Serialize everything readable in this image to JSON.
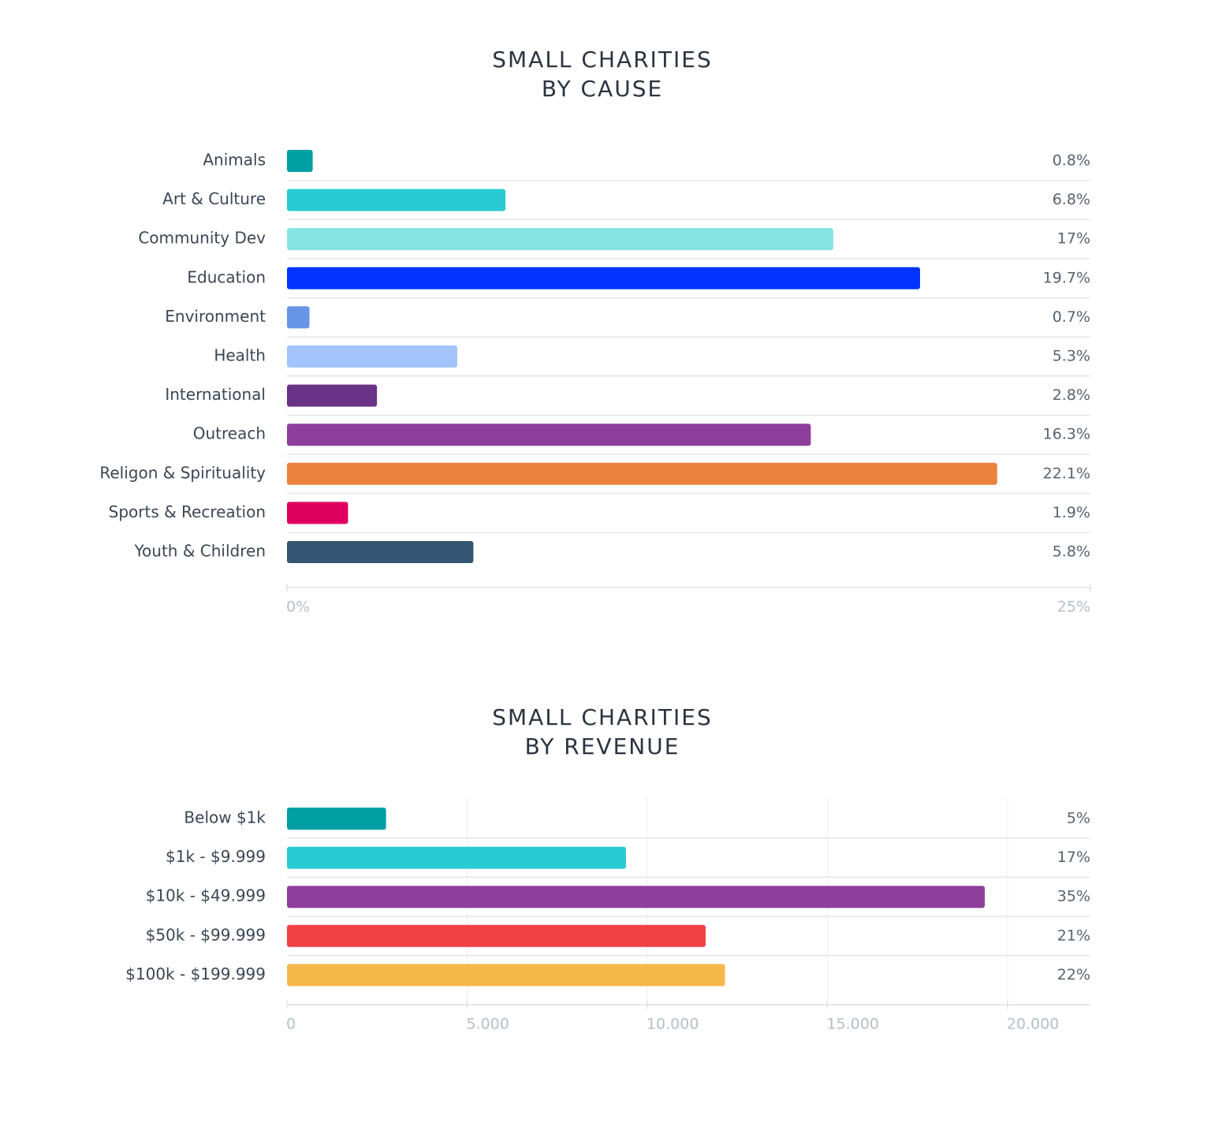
{
  "chart_data": [
    {
      "type": "hbar",
      "title": [
        "SMALL CHARITIES",
        "BY CAUSE"
      ],
      "categories": [
        "Animals",
        "Art & Culture",
        "Community Dev",
        "Education",
        "Environment",
        "Health",
        "International",
        "Outreach",
        "Religon & Spirituality",
        "Sports & Recreation",
        "Youth & Children"
      ],
      "values": [
        0.8,
        6.8,
        17,
        19.7,
        0.7,
        5.3,
        2.8,
        16.3,
        22.1,
        1.9,
        5.8
      ],
      "value_labels": [
        "0.8%",
        "6.8%",
        "17%",
        "19.7%",
        "0.7%",
        "5.3%",
        "2.8%",
        "16.3%",
        "22.1%",
        "1.9%",
        "5.8%"
      ],
      "colors": [
        "#009fa3",
        "#29cbd2",
        "#85e4e2",
        "#0033ff",
        "#6795e6",
        "#a3c3fc",
        "#6a3387",
        "#8e3f9c",
        "#eb823e",
        "#e0005f",
        "#345672"
      ],
      "xlim": [
        0,
        25
      ],
      "xticks": [
        {
          "value": 0,
          "label": "0%"
        },
        {
          "value": 25,
          "label": "25%"
        }
      ],
      "grid": false
    },
    {
      "type": "hbar",
      "title": [
        "SMALL CHARITIES",
        "BY REVENUE"
      ],
      "categories": [
        "Below $1k",
        "$1k - $9.999",
        "$10k - $49.999",
        "$50k - $99.999",
        "$100k - $199.999"
      ],
      "values": [
        2750,
        9410,
        19370,
        11620,
        12160
      ],
      "share_labels": [
        "5%",
        "17%",
        "35%",
        "21%",
        "22%"
      ],
      "colors": [
        "#009fa3",
        "#29cbd2",
        "#8e3f9c",
        "#f14145",
        "#f7b84a"
      ],
      "xlim": [
        0,
        22300
      ],
      "xticks": [
        0,
        {
          "value": 5000,
          "label": "5.000"
        },
        {
          "value": 10000,
          "label": "10.000"
        },
        {
          "value": 15000,
          "label": "15.000"
        },
        {
          "value": 20000,
          "label": "20.000"
        }
      ],
      "grid": true
    }
  ]
}
